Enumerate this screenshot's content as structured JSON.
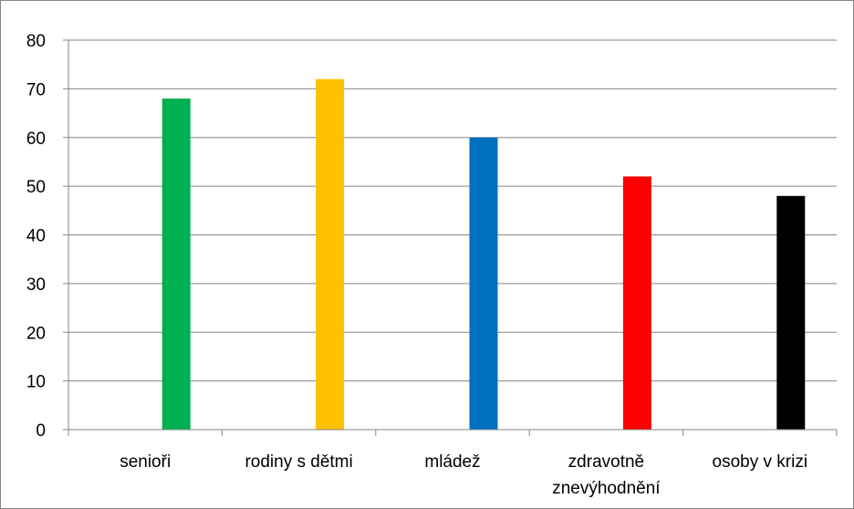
{
  "chart_data": {
    "type": "bar",
    "categories": [
      [
        "senioři"
      ],
      [
        "rodiny s dětmi"
      ],
      [
        "mládež"
      ],
      [
        "zdravotně",
        "znevýhodnění"
      ],
      [
        "osoby v krizi"
      ]
    ],
    "values": [
      68,
      72,
      60,
      52,
      48
    ],
    "colors": [
      "#00B050",
      "#FFC000",
      "#0070C0",
      "#FF0000",
      "#000000"
    ],
    "ylim": [
      0,
      80
    ],
    "yticks": [
      0,
      10,
      20,
      30,
      40,
      50,
      60,
      70,
      80
    ],
    "grid": true,
    "legend": "none"
  }
}
